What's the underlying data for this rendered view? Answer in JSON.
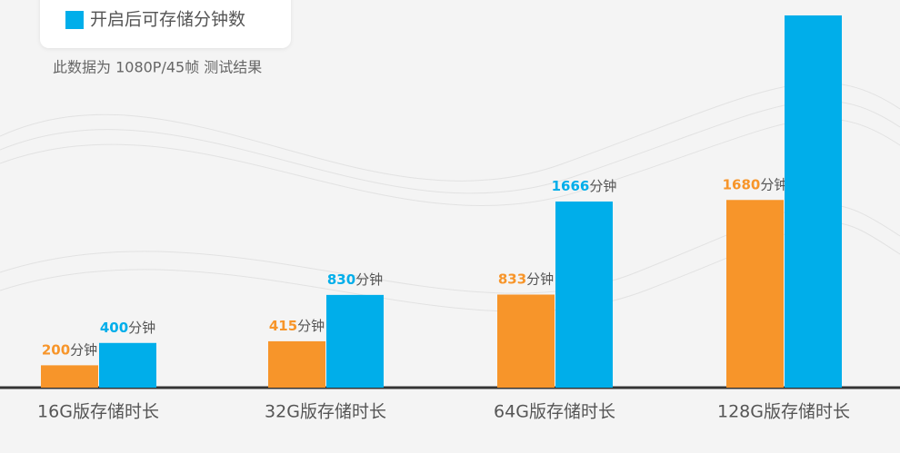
{
  "chart_data": {
    "type": "bar",
    "legend_label": "开启后可存储分钟数",
    "note": "此数据为 1080P/45帧 测试结果",
    "categories": [
      "16G版存储时长",
      "32G版存储时长",
      "64G版存储时长",
      "128G版存储时长"
    ],
    "series": [
      {
        "color": "#f7952a",
        "values": [
          200,
          415,
          833,
          1680
        ],
        "value_labels": [
          "200分钟",
          "415分钟",
          "833分钟",
          "1680分钟"
        ]
      },
      {
        "name": "开启后可存储分钟数",
        "color": "#00aeea",
        "values": [
          400,
          830,
          1666,
          3332
        ],
        "value_labels": [
          "400分钟",
          "830分钟",
          "1666分钟",
          null
        ]
      }
    ],
    "ylim": [
      0,
      3470
    ]
  }
}
